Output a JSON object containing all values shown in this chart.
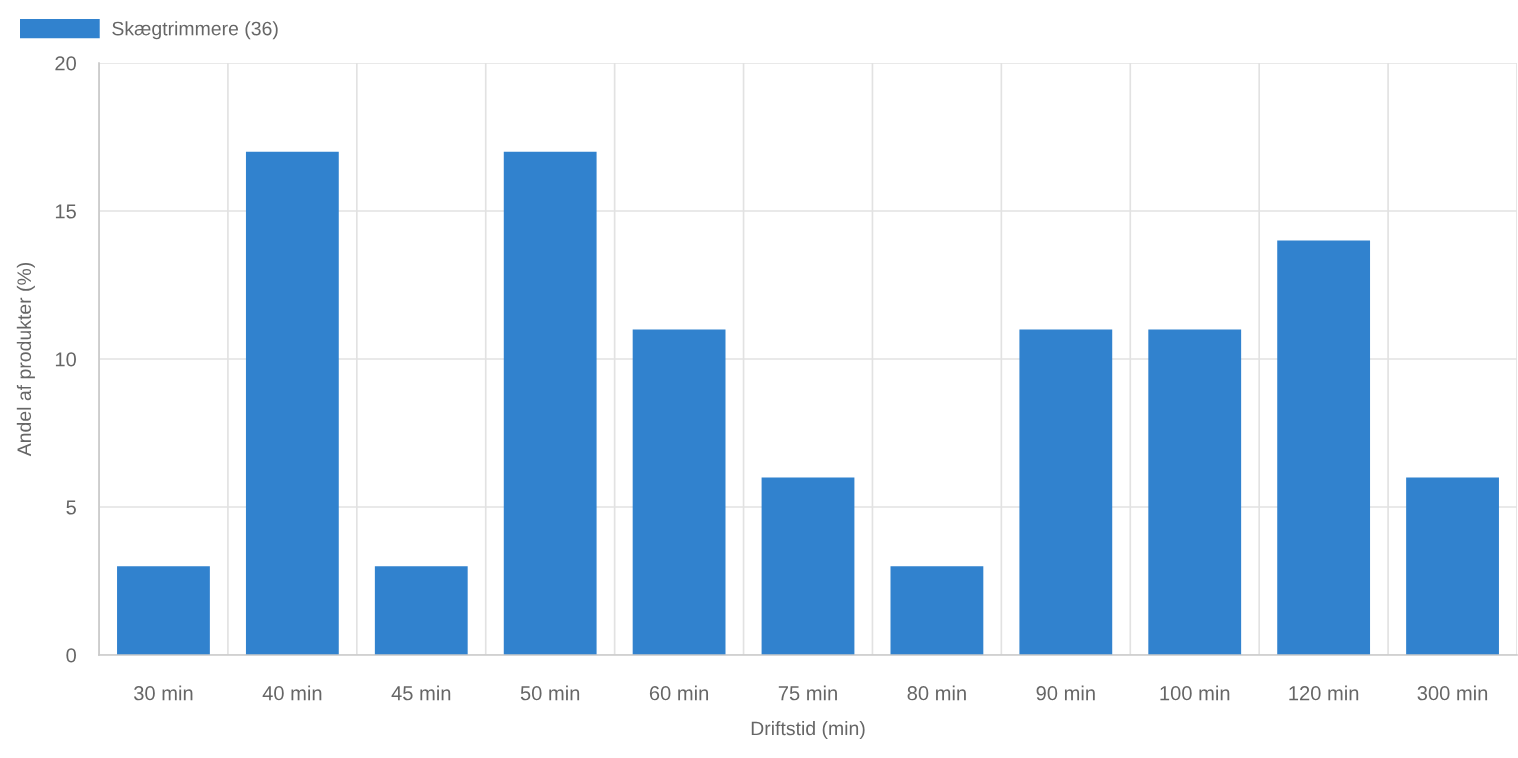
{
  "chart_data": {
    "type": "bar",
    "xlabel": "Driftstid (min)",
    "ylabel": "Andel af produkter (%)",
    "categories": [
      "30 min",
      "40 min",
      "45 min",
      "50 min",
      "60 min",
      "75 min",
      "80 min",
      "90 min",
      "100 min",
      "120 min",
      "300 min"
    ],
    "series": [
      {
        "name": "Skægtrimmere (36)",
        "color": "#3182ce",
        "values": [
          3,
          17,
          3,
          17,
          11,
          6,
          3,
          11,
          11,
          14,
          6
        ]
      }
    ],
    "ylim": [
      0,
      20
    ],
    "yticks": [
      0,
      5,
      10,
      15,
      20
    ],
    "grid": true,
    "legend": "top left"
  }
}
